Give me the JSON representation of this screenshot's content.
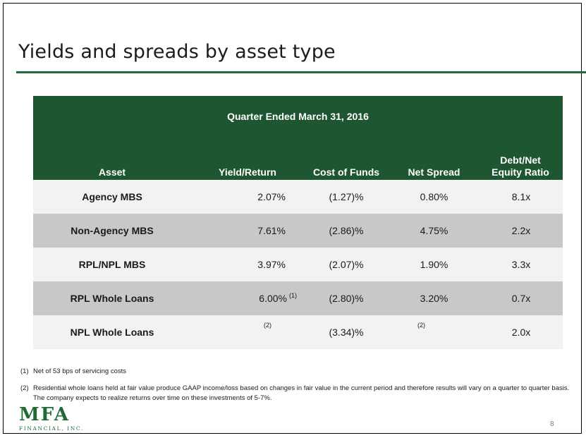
{
  "title": "Yields and spreads by asset type",
  "table": {
    "period": "Quarter Ended March 31, 2016",
    "columns": [
      "Asset",
      "Yield/Return",
      "Cost of Funds",
      "Net Spread",
      "Debt/Net Equity Ratio"
    ],
    "rows": [
      {
        "asset": "Agency MBS",
        "yield": "2.07%",
        "cost": "(1.27)%",
        "spread": "0.80%",
        "ratio": "8.1x"
      },
      {
        "asset": "Non-Agency MBS",
        "yield": "7.61%",
        "cost": "(2.86)%",
        "spread": "4.75%",
        "ratio": "2.2x"
      },
      {
        "asset": "RPL/NPL MBS",
        "yield": "3.97%",
        "cost": "(2.07)%",
        "spread": "1.90%",
        "ratio": "3.3x"
      },
      {
        "asset": "RPL Whole Loans",
        "yield": "6.00%",
        "yield_note": "(1)",
        "cost": "(2.80)%",
        "spread": "3.20%",
        "ratio": "0.7x"
      },
      {
        "asset": "NPL Whole Loans",
        "yield": "",
        "yield_note": "(2)",
        "cost": "(3.34)%",
        "spread": "",
        "spread_note": "(2)",
        "ratio": "2.0x"
      }
    ]
  },
  "footnotes": [
    {
      "num": "(1)",
      "text": "Net of 53 bps of servicing costs"
    },
    {
      "num": "(2)",
      "text": "Residential whole loans held at fair value produce GAAP income/loss based on changes in fair value in the current period and therefore results will vary on a quarter to quarter basis. The company expects to realize returns over time on these investments of 5-7%."
    }
  ],
  "logo": {
    "main": "MFA",
    "sub": "FINANCIAL, INC."
  },
  "page_number": "8",
  "colors": {
    "header_green": "#1e5631",
    "rule_green": "#1f6b36",
    "row_light": "#f2f2f2",
    "row_dark": "#c8c8c8"
  }
}
